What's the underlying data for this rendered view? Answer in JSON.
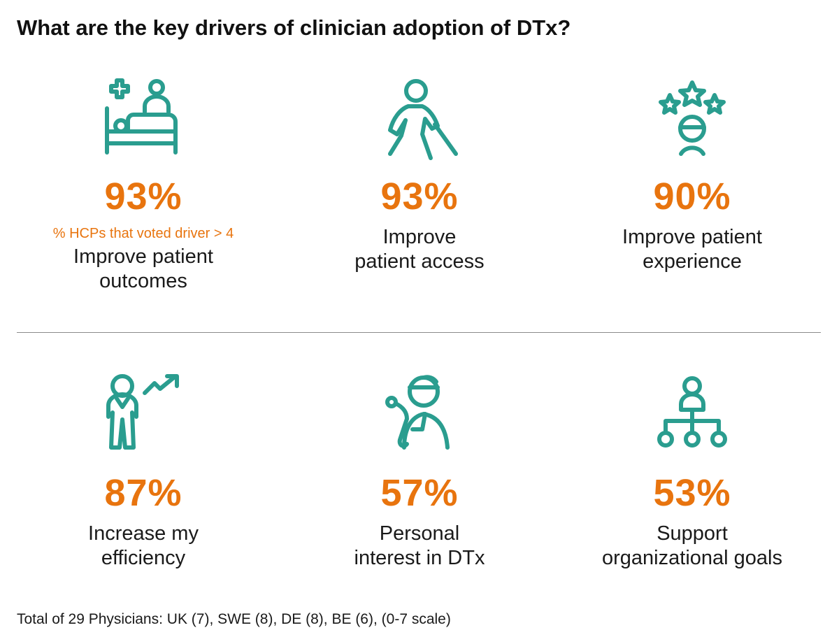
{
  "title": "What are the key drivers of clinician adoption of DTx?",
  "accent_color": "#e8740e",
  "icon_color": "#2a9d8f",
  "drivers": [
    {
      "icon": "patient-bed-icon",
      "percent": "93%",
      "note": "% HCPs that voted driver > 4",
      "label_lines": [
        "Improve patient",
        "outcomes"
      ]
    },
    {
      "icon": "walking-cane-icon",
      "percent": "93%",
      "label_lines": [
        "Improve",
        "patient access"
      ]
    },
    {
      "icon": "rating-stars-person-icon",
      "percent": "90%",
      "label_lines": [
        "Improve patient",
        "experience"
      ]
    },
    {
      "icon": "person-trend-up-icon",
      "percent": "87%",
      "label_lines": [
        "Increase my",
        "efficiency"
      ]
    },
    {
      "icon": "doctor-stethoscope-icon",
      "percent": "57%",
      "label_lines": [
        "Personal",
        "interest in DTx"
      ]
    },
    {
      "icon": "org-chart-icon",
      "percent": "53%",
      "label_lines": [
        "Support",
        "organizational goals"
      ]
    }
  ],
  "footer": "Total of 29 Physicians: UK (7), SWE (8), DE (8), BE (6), (0-7 scale)"
}
